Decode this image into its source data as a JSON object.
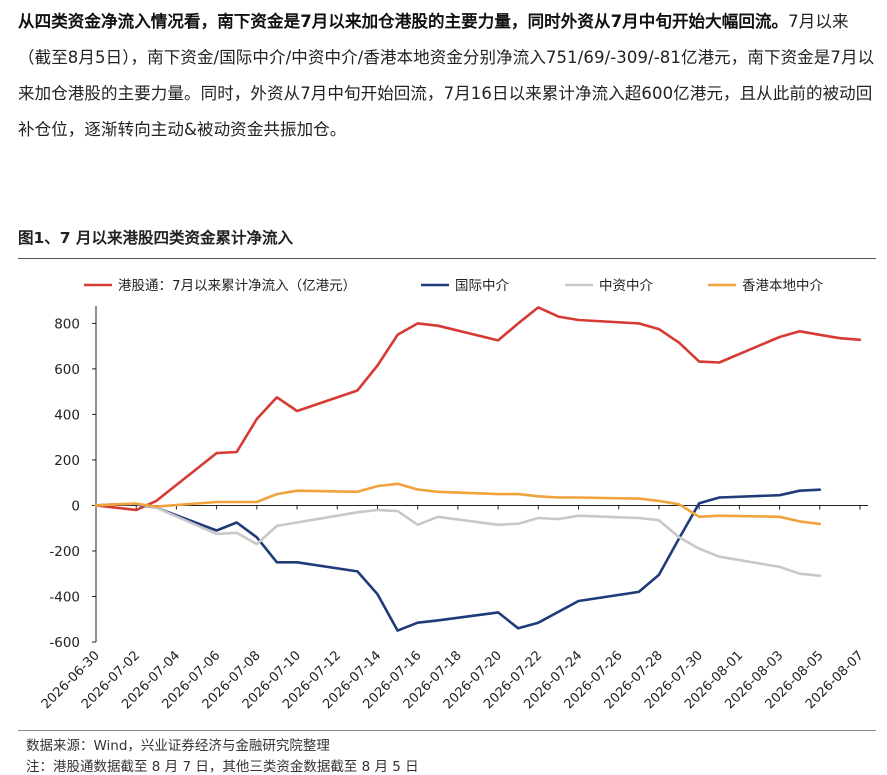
{
  "intro": {
    "lead": "从四类资金净流入情况看，南下资金是7月以来加仓港股的主要力量，同时外资从7月中旬开始大幅回流。",
    "body": "7月以来（截至8月5日），南下资金/国际中介/中资中介/香港本地资金分别净流入751/69/-309/-81亿港元，南下资金是7月以来加仓港股的主要力量。同时，外资从7月中旬开始回流，7月16日以来累计净流入超600亿港元，且从此前的被动回补仓位，逐渐转向主动&被动资金共振加仓。"
  },
  "figure_title": "图1、7 月以来港股四类资金累计净流入",
  "source": "数据来源：Wind，兴业证券经济与金融研究院整理",
  "note": "注：港股通数据截至 8 月 7 日，其他三类资金数据截至 8 月 5 日",
  "chart_data": {
    "type": "line",
    "title": "图1、7 月以来港股四类资金累计净流入",
    "legend_position": "top",
    "grid": false,
    "ylim": [
      -600,
      850
    ],
    "yticks": [
      800,
      600,
      400,
      200,
      0,
      -200,
      -400,
      -600
    ],
    "xlim": [
      "2026-06-30",
      "2026-08-07"
    ],
    "xticks": [
      "2026-06-30",
      "2026-07-02",
      "2026-07-04",
      "2026-07-06",
      "2026-07-08",
      "2026-07-10",
      "2026-07-12",
      "2026-07-14",
      "2026-07-16",
      "2026-07-18",
      "2026-07-20",
      "2026-07-22",
      "2026-07-24",
      "2026-07-26",
      "2026-07-28",
      "2026-07-30",
      "2026-08-01",
      "2026-08-03",
      "2026-08-05",
      "2026-08-07"
    ],
    "series": [
      {
        "name": "港股通：7月以来累计净流入（亿港元）",
        "color": "#d63a32",
        "points": [
          [
            "2026-06-30",
            0
          ],
          [
            "2026-07-01",
            -10
          ],
          [
            "2026-07-02",
            -20
          ],
          [
            "2026-07-03",
            20
          ],
          [
            "2026-07-06",
            230
          ],
          [
            "2026-07-07",
            235
          ],
          [
            "2026-07-08",
            380
          ],
          [
            "2026-07-09",
            475
          ],
          [
            "2026-07-10",
            415
          ],
          [
            "2026-07-13",
            505
          ],
          [
            "2026-07-14",
            615
          ],
          [
            "2026-07-15",
            750
          ],
          [
            "2026-07-16",
            800
          ],
          [
            "2026-07-17",
            790
          ],
          [
            "2026-07-20",
            725
          ],
          [
            "2026-07-21",
            800
          ],
          [
            "2026-07-22",
            870
          ],
          [
            "2026-07-23",
            830
          ],
          [
            "2026-07-24",
            815
          ],
          [
            "2026-07-27",
            800
          ],
          [
            "2026-07-28",
            775
          ],
          [
            "2026-07-29",
            715
          ],
          [
            "2026-07-30",
            632
          ],
          [
            "2026-07-31",
            628
          ],
          [
            "2026-08-03",
            740
          ],
          [
            "2026-08-04",
            765
          ],
          [
            "2026-08-05",
            750
          ],
          [
            "2026-08-06",
            735
          ],
          [
            "2026-08-07",
            728
          ]
        ]
      },
      {
        "name": "国际中介",
        "color": "#1f3b7a",
        "points": [
          [
            "2026-06-30",
            0
          ],
          [
            "2026-07-01",
            5
          ],
          [
            "2026-07-02",
            5
          ],
          [
            "2026-07-03",
            -10
          ],
          [
            "2026-07-06",
            -110
          ],
          [
            "2026-07-07",
            -75
          ],
          [
            "2026-07-08",
            -140
          ],
          [
            "2026-07-09",
            -250
          ],
          [
            "2026-07-10",
            -250
          ],
          [
            "2026-07-13",
            -290
          ],
          [
            "2026-07-14",
            -390
          ],
          [
            "2026-07-15",
            -550
          ],
          [
            "2026-07-16",
            -515
          ],
          [
            "2026-07-17",
            -505
          ],
          [
            "2026-07-20",
            -470
          ],
          [
            "2026-07-21",
            -540
          ],
          [
            "2026-07-22",
            -515
          ],
          [
            "2026-07-24",
            -420
          ],
          [
            "2026-07-27",
            -380
          ],
          [
            "2026-07-28",
            -305
          ],
          [
            "2026-07-29",
            -145
          ],
          [
            "2026-07-30",
            10
          ],
          [
            "2026-07-31",
            35
          ],
          [
            "2026-08-03",
            45
          ],
          [
            "2026-08-04",
            65
          ],
          [
            "2026-08-05",
            69
          ]
        ]
      },
      {
        "name": "中资中介",
        "color": "#c8c8c8",
        "points": [
          [
            "2026-06-30",
            0
          ],
          [
            "2026-07-01",
            5
          ],
          [
            "2026-07-02",
            8
          ],
          [
            "2026-07-03",
            -10
          ],
          [
            "2026-07-06",
            -125
          ],
          [
            "2026-07-07",
            -120
          ],
          [
            "2026-07-08",
            -170
          ],
          [
            "2026-07-09",
            -90
          ],
          [
            "2026-07-13",
            -30
          ],
          [
            "2026-07-14",
            -20
          ],
          [
            "2026-07-15",
            -25
          ],
          [
            "2026-07-16",
            -85
          ],
          [
            "2026-07-17",
            -50
          ],
          [
            "2026-07-20",
            -85
          ],
          [
            "2026-07-21",
            -80
          ],
          [
            "2026-07-22",
            -55
          ],
          [
            "2026-07-23",
            -60
          ],
          [
            "2026-07-24",
            -45
          ],
          [
            "2026-07-27",
            -55
          ],
          [
            "2026-07-28",
            -65
          ],
          [
            "2026-07-29",
            -140
          ],
          [
            "2026-07-30",
            -190
          ],
          [
            "2026-07-31",
            -225
          ],
          [
            "2026-08-03",
            -270
          ],
          [
            "2026-08-04",
            -300
          ],
          [
            "2026-08-05",
            -309
          ]
        ]
      },
      {
        "name": "香港本地中介",
        "color": "#f0a23c",
        "points": [
          [
            "2026-06-30",
            0
          ],
          [
            "2026-07-01",
            5
          ],
          [
            "2026-07-02",
            8
          ],
          [
            "2026-07-03",
            -5
          ],
          [
            "2026-07-06",
            15
          ],
          [
            "2026-07-07",
            15
          ],
          [
            "2026-07-08",
            15
          ],
          [
            "2026-07-09",
            50
          ],
          [
            "2026-07-10",
            65
          ],
          [
            "2026-07-13",
            60
          ],
          [
            "2026-07-14",
            85
          ],
          [
            "2026-07-15",
            95
          ],
          [
            "2026-07-16",
            70
          ],
          [
            "2026-07-17",
            60
          ],
          [
            "2026-07-20",
            50
          ],
          [
            "2026-07-21",
            50
          ],
          [
            "2026-07-22",
            40
          ],
          [
            "2026-07-23",
            35
          ],
          [
            "2026-07-24",
            35
          ],
          [
            "2026-07-27",
            30
          ],
          [
            "2026-07-28",
            20
          ],
          [
            "2026-07-29",
            5
          ],
          [
            "2026-07-30",
            -50
          ],
          [
            "2026-07-31",
            -45
          ],
          [
            "2026-08-03",
            -50
          ],
          [
            "2026-08-04",
            -70
          ],
          [
            "2026-08-05",
            -81
          ]
        ]
      }
    ]
  }
}
